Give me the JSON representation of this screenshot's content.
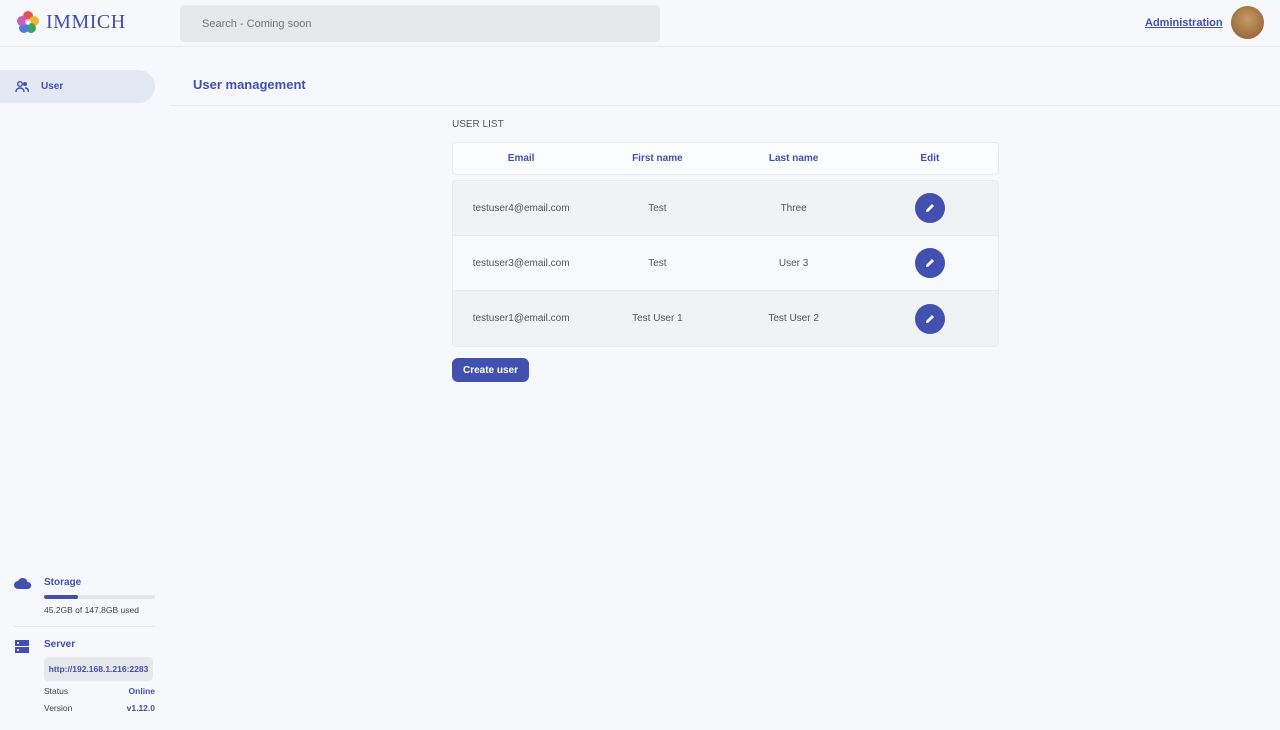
{
  "header": {
    "app_name": "IMMICH",
    "search_placeholder": "Search - Coming soon",
    "admin_link": "Administration"
  },
  "sidebar": {
    "items": [
      {
        "label": "User",
        "icon": "users-icon",
        "active": true
      }
    ]
  },
  "main": {
    "title": "User management",
    "section_label": "USER LIST",
    "columns": [
      "Email",
      "First name",
      "Last name",
      "Edit"
    ],
    "rows": [
      {
        "email": "testuser4@email.com",
        "first_name": "Test",
        "last_name": "Three"
      },
      {
        "email": "testuser3@email.com",
        "first_name": "Test",
        "last_name": "User 3"
      },
      {
        "email": "testuser1@email.com",
        "first_name": "Test User 1",
        "last_name": "Test User 2"
      }
    ],
    "create_button": "Create user"
  },
  "storage": {
    "title": "Storage",
    "usage_text": "45.2GB of 147.8GB used",
    "used_percent": 30.6
  },
  "server": {
    "title": "Server",
    "url": "http://192.168.1.216:2283",
    "status_label": "Status",
    "status_value": "Online",
    "version_label": "Version",
    "version_value": "v1.12.0"
  },
  "colors": {
    "accent": "#4250af",
    "background": "#f6f8fc"
  }
}
